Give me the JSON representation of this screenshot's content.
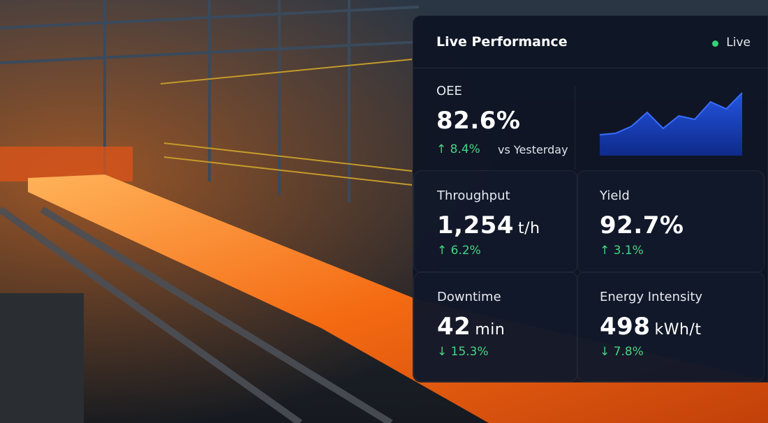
{
  "panel": {
    "title": "Live Performance",
    "status": "Live",
    "oee": {
      "label": "OEE",
      "value": "82.6%",
      "change": "↑ 8.4%",
      "comparison": "vs Yesterday",
      "trend": [
        30,
        32,
        42,
        62,
        39,
        57,
        52,
        77,
        67,
        90
      ]
    },
    "metrics": [
      {
        "label": "Throughput",
        "value": "1,254",
        "unit": "t/h",
        "change": "↑ 6.2%"
      },
      {
        "label": "Yield",
        "value": "92.7%",
        "unit": null,
        "change": "↑ 3.1%"
      },
      {
        "label": "Downtime",
        "value": "42",
        "unit": "min",
        "change": "↓ 15.3%"
      },
      {
        "label": "Energy Intensity",
        "value": "498",
        "unit": "kWh/t",
        "change": "↓ 7.8%"
      }
    ]
  }
}
